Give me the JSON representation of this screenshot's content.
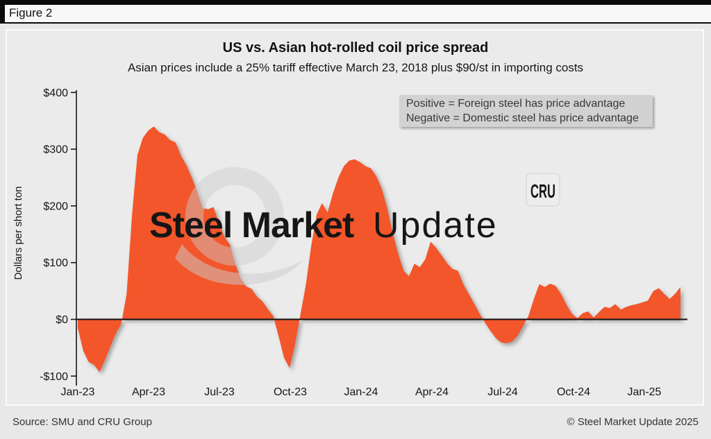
{
  "figure": {
    "label": "Figure 2"
  },
  "watermark": {
    "brand_bold": "Steel Market",
    "brand_light": "Update",
    "cru": "CRU"
  },
  "footer": {
    "source": "Source: SMU and CRU Group",
    "copyright": "© Steel Market Update 2025"
  },
  "chart_data": {
    "type": "area",
    "title": "US vs. Asian hot-rolled coil price spread",
    "subtitle": "Asian prices include a 25% tariff effective March 23, 2018 plus $90/st in importing costs",
    "xlabel": "",
    "ylabel": "Dollars per short ton",
    "annotation": {
      "line1": "Positive = Foreign steel has price advantage",
      "line2": "Negative = Domestic steel has price advantage"
    },
    "series_name": "US minus Asian hot-rolled coil price spread",
    "unit": "$ per short ton",
    "frequency": "weekly",
    "start": "Jan-2023",
    "end": "Feb-2025",
    "baseline": 0,
    "ylim": [
      -100,
      400
    ],
    "grid": false,
    "legend": "none",
    "color": "#F2572B",
    "x_ticks": [
      "Jan-23",
      "Apr-23",
      "Jul-23",
      "Oct-23",
      "Jan-24",
      "Apr-24",
      "Jul-24",
      "Oct-24",
      "Jan-25"
    ],
    "y_tick_labels": [
      "$400",
      "$300",
      "$200",
      "$100",
      "$0",
      "-$100"
    ],
    "y_tick_values": [
      400,
      300,
      200,
      100,
      0,
      -100
    ],
    "values": [
      -15,
      -55,
      -75,
      -80,
      -93,
      -72,
      -48,
      -25,
      -8,
      45,
      185,
      290,
      320,
      333,
      340,
      330,
      326,
      316,
      312,
      288,
      272,
      250,
      225,
      196,
      194,
      198,
      170,
      146,
      132,
      98,
      72,
      58,
      54,
      40,
      32,
      18,
      6,
      -30,
      -68,
      -86,
      -45,
      8,
      60,
      130,
      185,
      205,
      188,
      222,
      250,
      270,
      280,
      282,
      277,
      270,
      266,
      252,
      230,
      196,
      152,
      116,
      86,
      76,
      98,
      92,
      106,
      137,
      126,
      113,
      99,
      89,
      86,
      62,
      45,
      28,
      10,
      -6,
      -20,
      -33,
      -41,
      -42,
      -39,
      -29,
      -12,
      6,
      36,
      62,
      57,
      63,
      59,
      45,
      26,
      10,
      2,
      11,
      14,
      3,
      13,
      22,
      20,
      27,
      17,
      22,
      25,
      27,
      30,
      33,
      50,
      55,
      45,
      36,
      45,
      57
    ]
  }
}
